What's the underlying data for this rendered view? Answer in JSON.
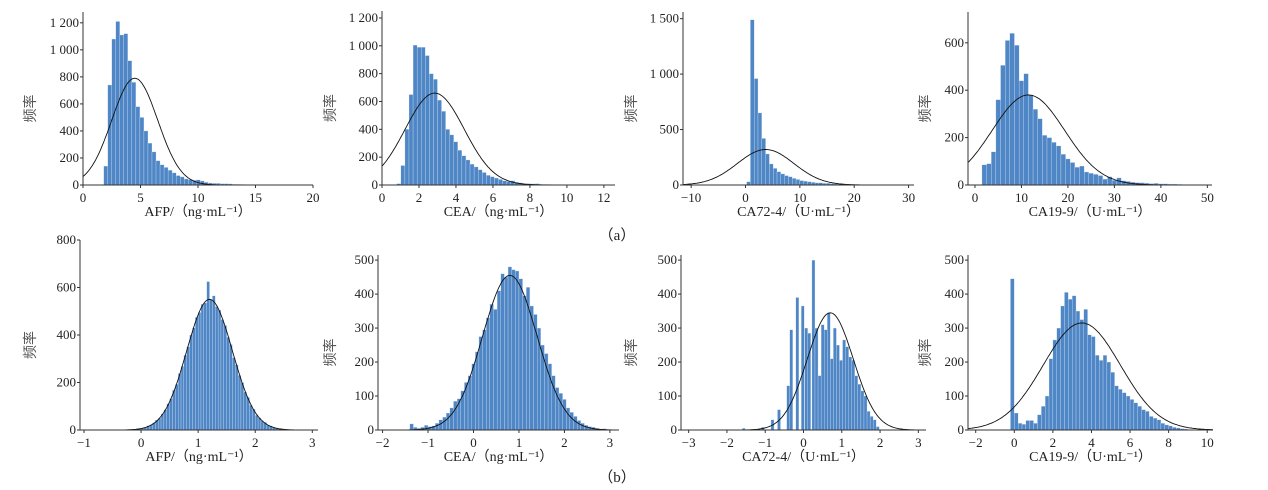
{
  "captions": [
    "（a）",
    "（b）"
  ],
  "chart_data": [
    {
      "id": "a1",
      "type": "bar",
      "row": "a",
      "title": "",
      "xlabel": "AFP/（ng·mL⁻¹）",
      "ylabel": "频率",
      "xlim": [
        0,
        20
      ],
      "ylim": [
        0,
        1280
      ],
      "xticks": [
        {
          "v": 0,
          "t": "0"
        },
        {
          "v": 5,
          "t": "5"
        },
        {
          "v": 10,
          "t": "10"
        },
        {
          "v": 15,
          "t": "15"
        },
        {
          "v": 20,
          "t": "20"
        }
      ],
      "yticks": [
        {
          "v": 0,
          "t": "0"
        },
        {
          "v": 200,
          "t": "200"
        },
        {
          "v": 400,
          "t": "400"
        },
        {
          "v": 600,
          "t": "600"
        },
        {
          "v": 800,
          "t": "800"
        },
        {
          "v": 1000,
          "t": "1 000"
        },
        {
          "v": 1200,
          "t": "1 200"
        }
      ],
      "bin_start": 1.8,
      "bin_width": 0.35,
      "values": [
        140,
        740,
        1080,
        1210,
        1110,
        1120,
        920,
        760,
        580,
        500,
        400,
        310,
        245,
        180,
        150,
        130,
        110,
        90,
        70,
        60,
        45,
        40,
        35,
        38,
        30,
        20,
        15,
        12,
        12,
        10,
        10,
        8,
        6,
        5,
        4
      ],
      "fit": {
        "mean": 4.5,
        "sd": 2.0,
        "peak": 790
      }
    },
    {
      "id": "a2",
      "type": "bar",
      "row": "a",
      "title": "",
      "xlabel": "CEA/（ng·mL⁻¹）",
      "ylabel": "频率",
      "xlim": [
        0,
        12.6
      ],
      "ylim": [
        0,
        1250
      ],
      "xticks": [
        {
          "v": 0,
          "t": "0"
        },
        {
          "v": 2,
          "t": "2"
        },
        {
          "v": 4,
          "t": "4"
        },
        {
          "v": 6,
          "t": "6"
        },
        {
          "v": 8,
          "t": "8"
        },
        {
          "v": 10,
          "t": "10"
        },
        {
          "v": 12,
          "t": "12"
        }
      ],
      "yticks": [
        {
          "v": 0,
          "t": "0"
        },
        {
          "v": 200,
          "t": "200"
        },
        {
          "v": 400,
          "t": "400"
        },
        {
          "v": 600,
          "t": "600"
        },
        {
          "v": 800,
          "t": "800"
        },
        {
          "v": 1000,
          "t": "1 000"
        },
        {
          "v": 1200,
          "t": "1 200"
        }
      ],
      "bin_start": 0.8,
      "bin_width": 0.22,
      "values": [
        10,
        140,
        400,
        650,
        1005,
        990,
        990,
        930,
        800,
        760,
        610,
        530,
        400,
        360,
        310,
        250,
        210,
        180,
        150,
        130,
        110,
        90,
        70,
        60,
        50,
        40,
        30,
        25,
        30,
        20,
        15,
        10,
        10,
        8,
        10,
        6,
        5,
        4,
        3,
        3,
        2,
        2
      ],
      "fit": {
        "mean": 2.85,
        "sd": 1.6,
        "peak": 660
      }
    },
    {
      "id": "a3",
      "type": "bar",
      "row": "a",
      "title": "",
      "xlabel": "CA72-4/（U·mL⁻¹）",
      "ylabel": "频率",
      "xlim": [
        -11.5,
        31
      ],
      "ylim": [
        0,
        1560
      ],
      "xticks": [
        {
          "v": -10,
          "t": "−10"
        },
        {
          "v": 0,
          "t": "0"
        },
        {
          "v": 10,
          "t": "10"
        },
        {
          "v": 20,
          "t": "20"
        },
        {
          "v": 30,
          "t": "30"
        }
      ],
      "yticks": [
        {
          "v": 0,
          "t": "0"
        },
        {
          "v": 500,
          "t": "500"
        },
        {
          "v": 1000,
          "t": "1 000"
        },
        {
          "v": 1500,
          "t": "1 500"
        }
      ],
      "bin_start": 0.2,
      "bin_width": 0.7,
      "values": [
        30,
        1490,
        960,
        650,
        420,
        280,
        190,
        150,
        120,
        100,
        85,
        75,
        60,
        50,
        40,
        35,
        30,
        25,
        20,
        20,
        15,
        15,
        12,
        10,
        10,
        8,
        8,
        6,
        5,
        5,
        4,
        4,
        3,
        3,
        2,
        2
      ],
      "fit": {
        "mean": 3.7,
        "sd": 5.2,
        "peak": 320
      }
    },
    {
      "id": "a4",
      "type": "bar",
      "row": "a",
      "title": "",
      "xlabel": "CA19-9/（U·mL⁻¹）",
      "ylabel": "频率",
      "xlim": [
        -1.5,
        51
      ],
      "ylim": [
        0,
        730
      ],
      "xticks": [
        {
          "v": 0,
          "t": "0"
        },
        {
          "v": 10,
          "t": "10"
        },
        {
          "v": 20,
          "t": "20"
        },
        {
          "v": 30,
          "t": "30"
        },
        {
          "v": 40,
          "t": "40"
        },
        {
          "v": 50,
          "t": "50"
        }
      ],
      "yticks": [
        {
          "v": 0,
          "t": "0"
        },
        {
          "v": 200,
          "t": "200"
        },
        {
          "v": 400,
          "t": "400"
        },
        {
          "v": 600,
          "t": "600"
        }
      ],
      "bin_start": 1.5,
      "bin_width": 1.0,
      "values": [
        85,
        90,
        140,
        360,
        505,
        610,
        640,
        590,
        440,
        470,
        380,
        320,
        280,
        210,
        200,
        180,
        165,
        130,
        110,
        95,
        75,
        80,
        55,
        50,
        45,
        40,
        25,
        35,
        20,
        30,
        18,
        15,
        12,
        10,
        10,
        8,
        6,
        7,
        5,
        5,
        4,
        4,
        3
      ],
      "fit": {
        "mean": 11.5,
        "sd": 7.8,
        "peak": 380
      }
    },
    {
      "id": "b1",
      "type": "bar",
      "row": "b",
      "title": "",
      "xlabel": "AFP/（ng·mL⁻¹）",
      "ylabel": "频率",
      "xlim": [
        -1.07,
        3.1
      ],
      "ylim": [
        0,
        800
      ],
      "xticks": [
        {
          "v": -1,
          "t": "−1"
        },
        {
          "v": 0,
          "t": "0"
        },
        {
          "v": 1,
          "t": "1"
        },
        {
          "v": 2,
          "t": "2"
        },
        {
          "v": 3,
          "t": "3"
        }
      ],
      "yticks": [
        {
          "v": 0,
          "t": "0"
        },
        {
          "v": 200,
          "t": "200"
        },
        {
          "v": 400,
          "t": "400"
        },
        {
          "v": 600,
          "t": "600"
        },
        {
          "v": 800,
          "t": "800"
        }
      ],
      "bin_start": -0.1,
      "bin_width": 0.05,
      "values": [
        4,
        6,
        8,
        12,
        18,
        22,
        30,
        42,
        50,
        68,
        85,
        110,
        132,
        168,
        192,
        238,
        268,
        315,
        350,
        400,
        430,
        475,
        495,
        530,
        535,
        625,
        548,
        565,
        520,
        505,
        465,
        440,
        390,
        360,
        305,
        275,
        230,
        200,
        160,
        138,
        105,
        88,
        62,
        52,
        38,
        32,
        20,
        17,
        11,
        8,
        6,
        5,
        3
      ],
      "fit": {
        "mean": 1.2,
        "sd": 0.4,
        "peak": 550
      }
    },
    {
      "id": "b2",
      "type": "bar",
      "row": "b",
      "title": "",
      "xlabel": "CEA/（ng·mL⁻¹）",
      "ylabel": "频率",
      "xlim": [
        -2.1,
        3.2
      ],
      "ylim": [
        0,
        515
      ],
      "xticks": [
        {
          "v": -2,
          "t": "−2"
        },
        {
          "v": -1,
          "t": "−1"
        },
        {
          "v": 0,
          "t": "0"
        },
        {
          "v": 1,
          "t": "1"
        },
        {
          "v": 2,
          "t": "2"
        },
        {
          "v": 3,
          "t": "3"
        }
      ],
      "yticks": [
        {
          "v": 0,
          "t": "0"
        },
        {
          "v": 100,
          "t": "100"
        },
        {
          "v": 200,
          "t": "200"
        },
        {
          "v": 300,
          "t": "300"
        },
        {
          "v": 400,
          "t": "400"
        },
        {
          "v": 500,
          "t": "500"
        }
      ],
      "bin_start": -1.4,
      "bin_width": 0.08,
      "values": [
        18,
        8,
        5,
        8,
        14,
        10,
        12,
        20,
        30,
        38,
        50,
        65,
        85,
        92,
        115,
        140,
        160,
        195,
        230,
        275,
        295,
        330,
        370,
        355,
        410,
        460,
        450,
        480,
        472,
        468,
        445,
        395,
        420,
        365,
        340,
        300,
        250,
        225,
        195,
        160,
        125,
        108,
        90,
        65,
        52,
        40,
        28,
        20,
        14,
        10,
        8,
        5,
        3,
        4
      ],
      "fit": {
        "mean": 0.8,
        "sd": 0.6,
        "peak": 455
      }
    },
    {
      "id": "b3",
      "type": "bar",
      "row": "b",
      "title": "",
      "xlabel": "CA72-4/（U·mL⁻¹）",
      "ylabel": "频率",
      "xlim": [
        -3.2,
        3.2
      ],
      "ylim": [
        0,
        515
      ],
      "xticks": [
        {
          "v": -3,
          "t": "−3"
        },
        {
          "v": -2,
          "t": "−2"
        },
        {
          "v": -1,
          "t": "−1"
        },
        {
          "v": 0,
          "t": "0"
        },
        {
          "v": 1,
          "t": "1"
        },
        {
          "v": 2,
          "t": "2"
        },
        {
          "v": 3,
          "t": "3"
        }
      ],
      "yticks": [
        {
          "v": 0,
          "t": "0"
        },
        {
          "v": 100,
          "t": "100"
        },
        {
          "v": 200,
          "t": "200"
        },
        {
          "v": 300,
          "t": "300"
        },
        {
          "v": 400,
          "t": "400"
        },
        {
          "v": 500,
          "t": "500"
        }
      ],
      "bin_width": 0.08,
      "bins": [
        [
          -1.6,
          5
        ],
        [
          -1.1,
          8
        ],
        [
          -0.85,
          30
        ],
        [
          -0.68,
          60
        ],
        [
          -0.44,
          130
        ],
        [
          -0.36,
          295
        ],
        [
          -0.2,
          390
        ],
        [
          -0.06,
          365
        ],
        [
          0.03,
          300
        ],
        [
          0.11,
          285
        ],
        [
          0.22,
          500
        ],
        [
          0.3,
          300
        ],
        [
          0.38,
          160
        ],
        [
          0.46,
          310
        ],
        [
          0.54,
          295
        ],
        [
          0.62,
          345
        ],
        [
          0.7,
          210
        ],
        [
          0.78,
          300
        ],
        [
          0.86,
          250
        ],
        [
          0.94,
          205
        ],
        [
          1.02,
          265
        ],
        [
          1.1,
          245
        ],
        [
          1.18,
          215
        ],
        [
          1.26,
          205
        ],
        [
          1.34,
          160
        ],
        [
          1.42,
          135
        ],
        [
          1.5,
          115
        ],
        [
          1.58,
          100
        ],
        [
          1.66,
          55
        ],
        [
          1.74,
          40
        ],
        [
          1.82,
          30
        ],
        [
          1.9,
          10
        ]
      ],
      "fit": {
        "mean": 0.7,
        "sd": 0.6,
        "peak": 345
      }
    },
    {
      "id": "b4",
      "type": "bar",
      "row": "b",
      "title": "",
      "xlabel": "CA19-9/（U·mL⁻¹）",
      "ylabel": "频率",
      "xlim": [
        -2.4,
        10.3
      ],
      "ylim": [
        0,
        515
      ],
      "xticks": [
        {
          "v": -2,
          "t": "−2"
        },
        {
          "v": 0,
          "t": "0"
        },
        {
          "v": 2,
          "t": "2"
        },
        {
          "v": 4,
          "t": "4"
        },
        {
          "v": 6,
          "t": "6"
        },
        {
          "v": 8,
          "t": "8"
        },
        {
          "v": 10,
          "t": "10"
        }
      ],
      "yticks": [
        {
          "v": 0,
          "t": "0"
        },
        {
          "v": 100,
          "t": "100"
        },
        {
          "v": 200,
          "t": "200"
        },
        {
          "v": 300,
          "t": "300"
        },
        {
          "v": 400,
          "t": "400"
        },
        {
          "v": 500,
          "t": "500"
        }
      ],
      "bin_start": -0.2,
      "bin_width": 0.2,
      "values": [
        445,
        50,
        20,
        17,
        28,
        28,
        20,
        45,
        70,
        100,
        210,
        265,
        300,
        365,
        405,
        385,
        395,
        350,
        325,
        355,
        280,
        275,
        220,
        205,
        220,
        200,
        170,
        130,
        120,
        110,
        100,
        90,
        80,
        70,
        60,
        55,
        40,
        35,
        30,
        20,
        15,
        12,
        8,
        6,
        4,
        3
      ],
      "fit": {
        "mean": 3.5,
        "sd": 2.0,
        "peak": 315
      }
    }
  ]
}
